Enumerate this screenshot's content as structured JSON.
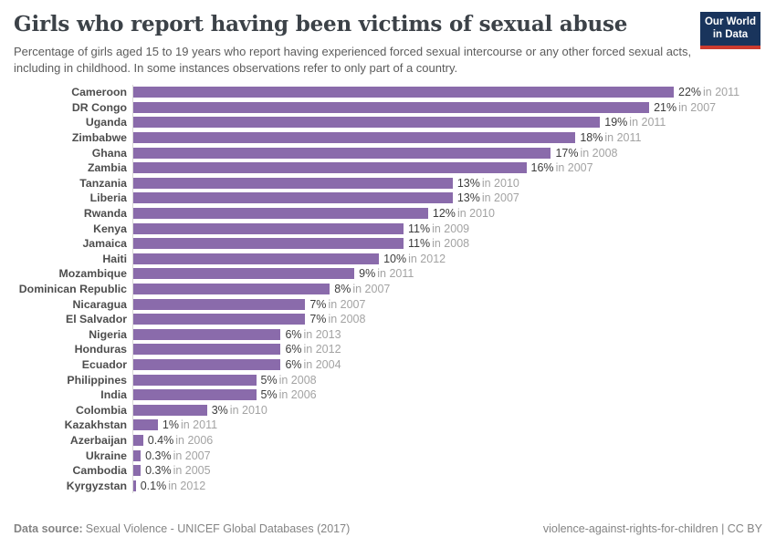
{
  "logo": {
    "line1": "Our World",
    "line2": "in Data"
  },
  "chart_data": {
    "type": "bar",
    "orientation": "horizontal",
    "title": "Girls who report having been victims of sexual abuse",
    "subtitle": "Percentage of girls aged 15 to 19 years who report having experienced forced sexual intercourse or any other forced sexual acts, including in childhood. In some instances observations refer to only part of a country.",
    "unit": "%",
    "xlim": [
      0,
      22
    ],
    "grid": false,
    "legend": false,
    "bar_color": "#8a6bab",
    "categories": [
      "Cameroon",
      "DR Congo",
      "Uganda",
      "Zimbabwe",
      "Ghana",
      "Zambia",
      "Tanzania",
      "Liberia",
      "Rwanda",
      "Kenya",
      "Jamaica",
      "Haiti",
      "Mozambique",
      "Dominican Republic",
      "Nicaragua",
      "El Salvador",
      "Nigeria",
      "Honduras",
      "Ecuador",
      "Philippines",
      "India",
      "Colombia",
      "Kazakhstan",
      "Azerbaijan",
      "Ukraine",
      "Cambodia",
      "Kyrgyzstan"
    ],
    "values": [
      22,
      21,
      19,
      18,
      17,
      16,
      13,
      13,
      12,
      11,
      11,
      10,
      9,
      8,
      7,
      7,
      6,
      6,
      6,
      5,
      5,
      3,
      1,
      0.4,
      0.3,
      0.3,
      0.1
    ],
    "value_labels": [
      "22%",
      "21%",
      "19%",
      "18%",
      "17%",
      "16%",
      "13%",
      "13%",
      "12%",
      "11%",
      "11%",
      "10%",
      "9%",
      "8%",
      "7%",
      "7%",
      "6%",
      "6%",
      "6%",
      "5%",
      "5%",
      "3%",
      "1%",
      "0.4%",
      "0.3%",
      "0.3%",
      "0.1%"
    ],
    "year_labels": [
      "in 2011",
      "in 2007",
      "in 2011",
      "in 2011",
      "in 2008",
      "in 2007",
      "in 2010",
      "in 2007",
      "in 2010",
      "in 2009",
      "in 2008",
      "in 2012",
      "in 2011",
      "in 2007",
      "in 2007",
      "in 2008",
      "in 2013",
      "in 2012",
      "in 2004",
      "in 2008",
      "in 2006",
      "in 2010",
      "in 2011",
      "in 2006",
      "in 2007",
      "in 2005",
      "in 2012"
    ]
  },
  "footer": {
    "datasource_label": "Data source:",
    "datasource_text": "Sexual Violence - UNICEF Global Databases (2017)",
    "credit": "violence-against-rights-for-children | CC BY"
  }
}
